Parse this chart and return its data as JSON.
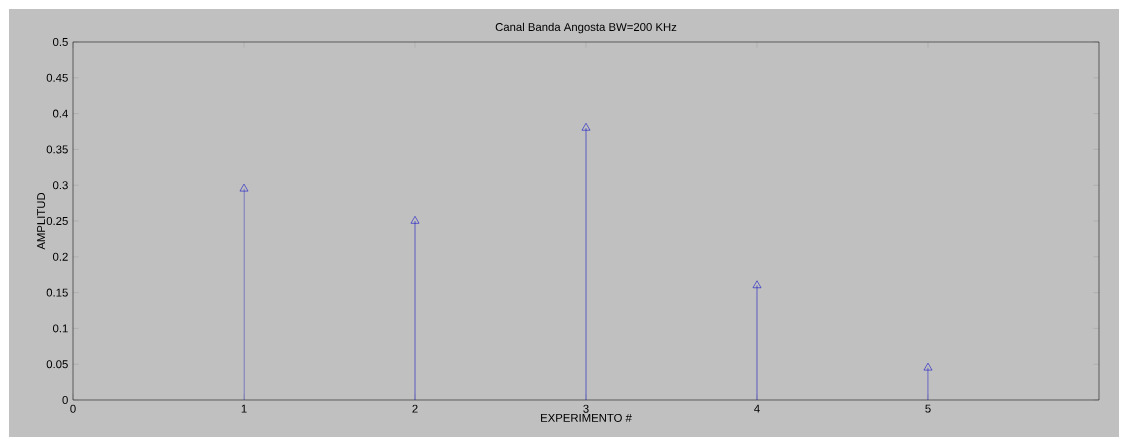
{
  "chart_data": {
    "type": "lollipop",
    "title": "Canal Banda Angosta BW=200 KHz",
    "xlabel": "EXPERIMENTO #",
    "ylabel": "AMPLITUD",
    "x": [
      1,
      2,
      3,
      4,
      5
    ],
    "values": [
      0.295,
      0.25,
      0.38,
      0.16,
      0.045
    ],
    "color": "#0000c8",
    "marker": "triangle",
    "xlim": [
      0,
      6
    ],
    "xticks": [
      0,
      1,
      2,
      3,
      4,
      5
    ],
    "ylim": [
      0,
      0.5
    ],
    "yticks": [
      0,
      0.05,
      0.1,
      0.15,
      0.2,
      0.25,
      0.3,
      0.35,
      0.4,
      0.45,
      0.5
    ]
  }
}
